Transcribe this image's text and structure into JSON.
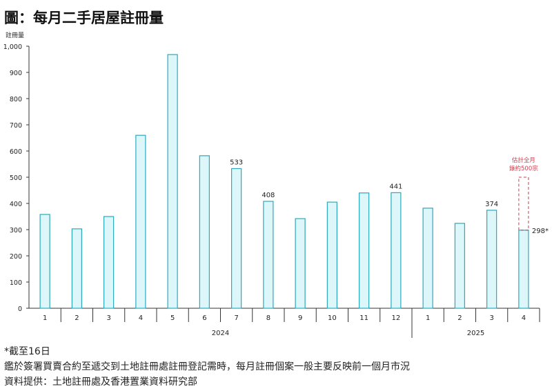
{
  "chart_data": {
    "type": "bar",
    "title": "圖：每月二手居屋註冊量",
    "ylabel": "註冊量",
    "xlabel": "",
    "ylim": [
      0,
      1000
    ],
    "yticks": [
      "0",
      "100",
      "200",
      "300",
      "400",
      "500",
      "600",
      "700",
      "800",
      "900",
      "1,000"
    ],
    "categories": [
      "1",
      "2",
      "3",
      "4",
      "5",
      "6",
      "7",
      "8",
      "9",
      "10",
      "11",
      "12",
      "1",
      "2",
      "3",
      "4"
    ],
    "year_groups": [
      {
        "label": "2024",
        "count": 12
      },
      {
        "label": "2025",
        "count": 4
      }
    ],
    "values": [
      358,
      303,
      350,
      660,
      968,
      582,
      533,
      408,
      342,
      405,
      440,
      441,
      382,
      324,
      374,
      298
    ],
    "data_labels": {
      "6": "533",
      "7": "408",
      "11": "441",
      "14": "374",
      "15": "298*"
    },
    "estimate": {
      "index": 15,
      "value": 500,
      "label_line1": "估計全月",
      "label_line2": "錄約500宗"
    },
    "colors": {
      "bar_fill": "#dcf6fa",
      "bar_stroke": "#2aa9bd",
      "estimate": "#d23a4a",
      "axis": "#333333"
    }
  },
  "notes": [
    "*截至16日",
    "鑑於簽署買賣合約至遞交到土地註冊處註冊登記需時，每月註冊個案一般主要反映前一個月市況",
    "資料提供：土地註冊處及香港置業資料研究部"
  ]
}
